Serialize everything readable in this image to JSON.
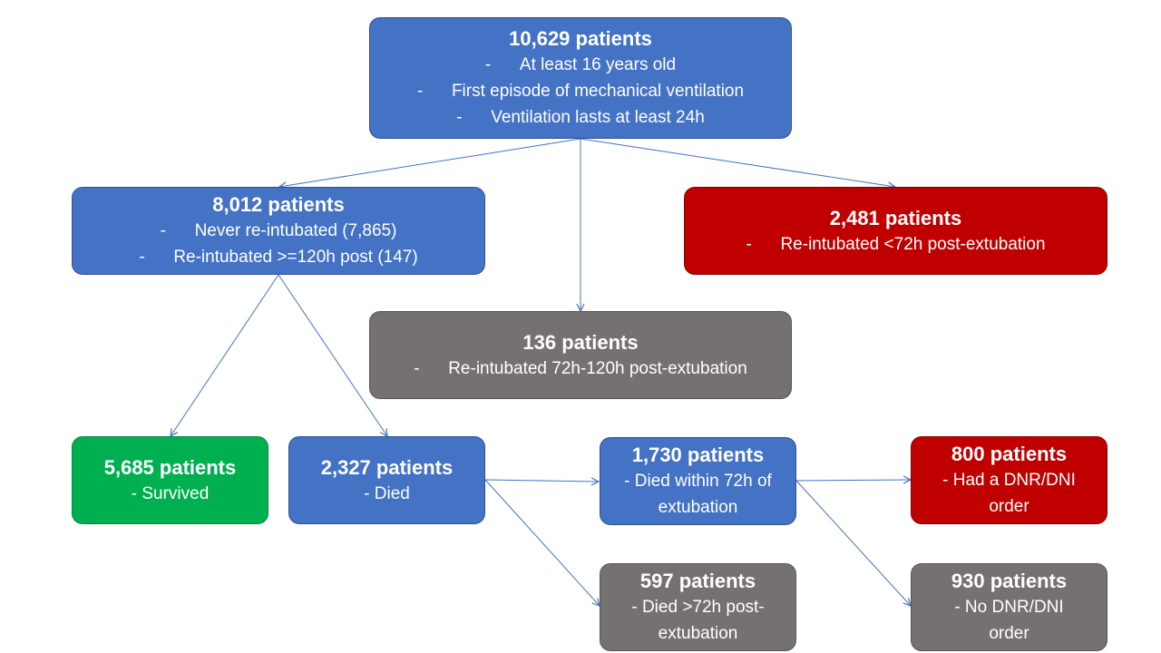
{
  "nodes": {
    "total": {
      "title": "10,629 patients",
      "lines": [
        "At least 16 years old",
        "First episode of mechanical ventilation",
        "Ventilation lasts at least 24h"
      ]
    },
    "not_reint": {
      "title": "8,012 patients",
      "lines": [
        "Never re-intubated (7,865)",
        "Re-intubated >=120h post (147)"
      ]
    },
    "reint_early": {
      "title": "2,481 patients",
      "lines": [
        "Re-intubated <72h post-extubation"
      ]
    },
    "reint_mid": {
      "title": "136 patients",
      "lines": [
        "Re-intubated 72h-120h post-extubation"
      ]
    },
    "survived": {
      "title": "5,685 patients",
      "text": "- Survived"
    },
    "died": {
      "title": "2,327 patients",
      "text": "- Died"
    },
    "died_72": {
      "title": "1,730 patients",
      "text": "- Died within 72h of extubation"
    },
    "died_gt72": {
      "title": "597 patients",
      "text": "- Died >72h post-extubation"
    },
    "dnr": {
      "title": "800 patients",
      "text": "- Had a DNR/DNI order"
    },
    "no_dnr": {
      "title": "930 patients",
      "text": "- No DNR/DNI order"
    }
  },
  "colors": {
    "blue": "#4472c4",
    "red": "#c00000",
    "gray": "#767171",
    "green": "#00b050",
    "arrow": "#4472c4"
  }
}
